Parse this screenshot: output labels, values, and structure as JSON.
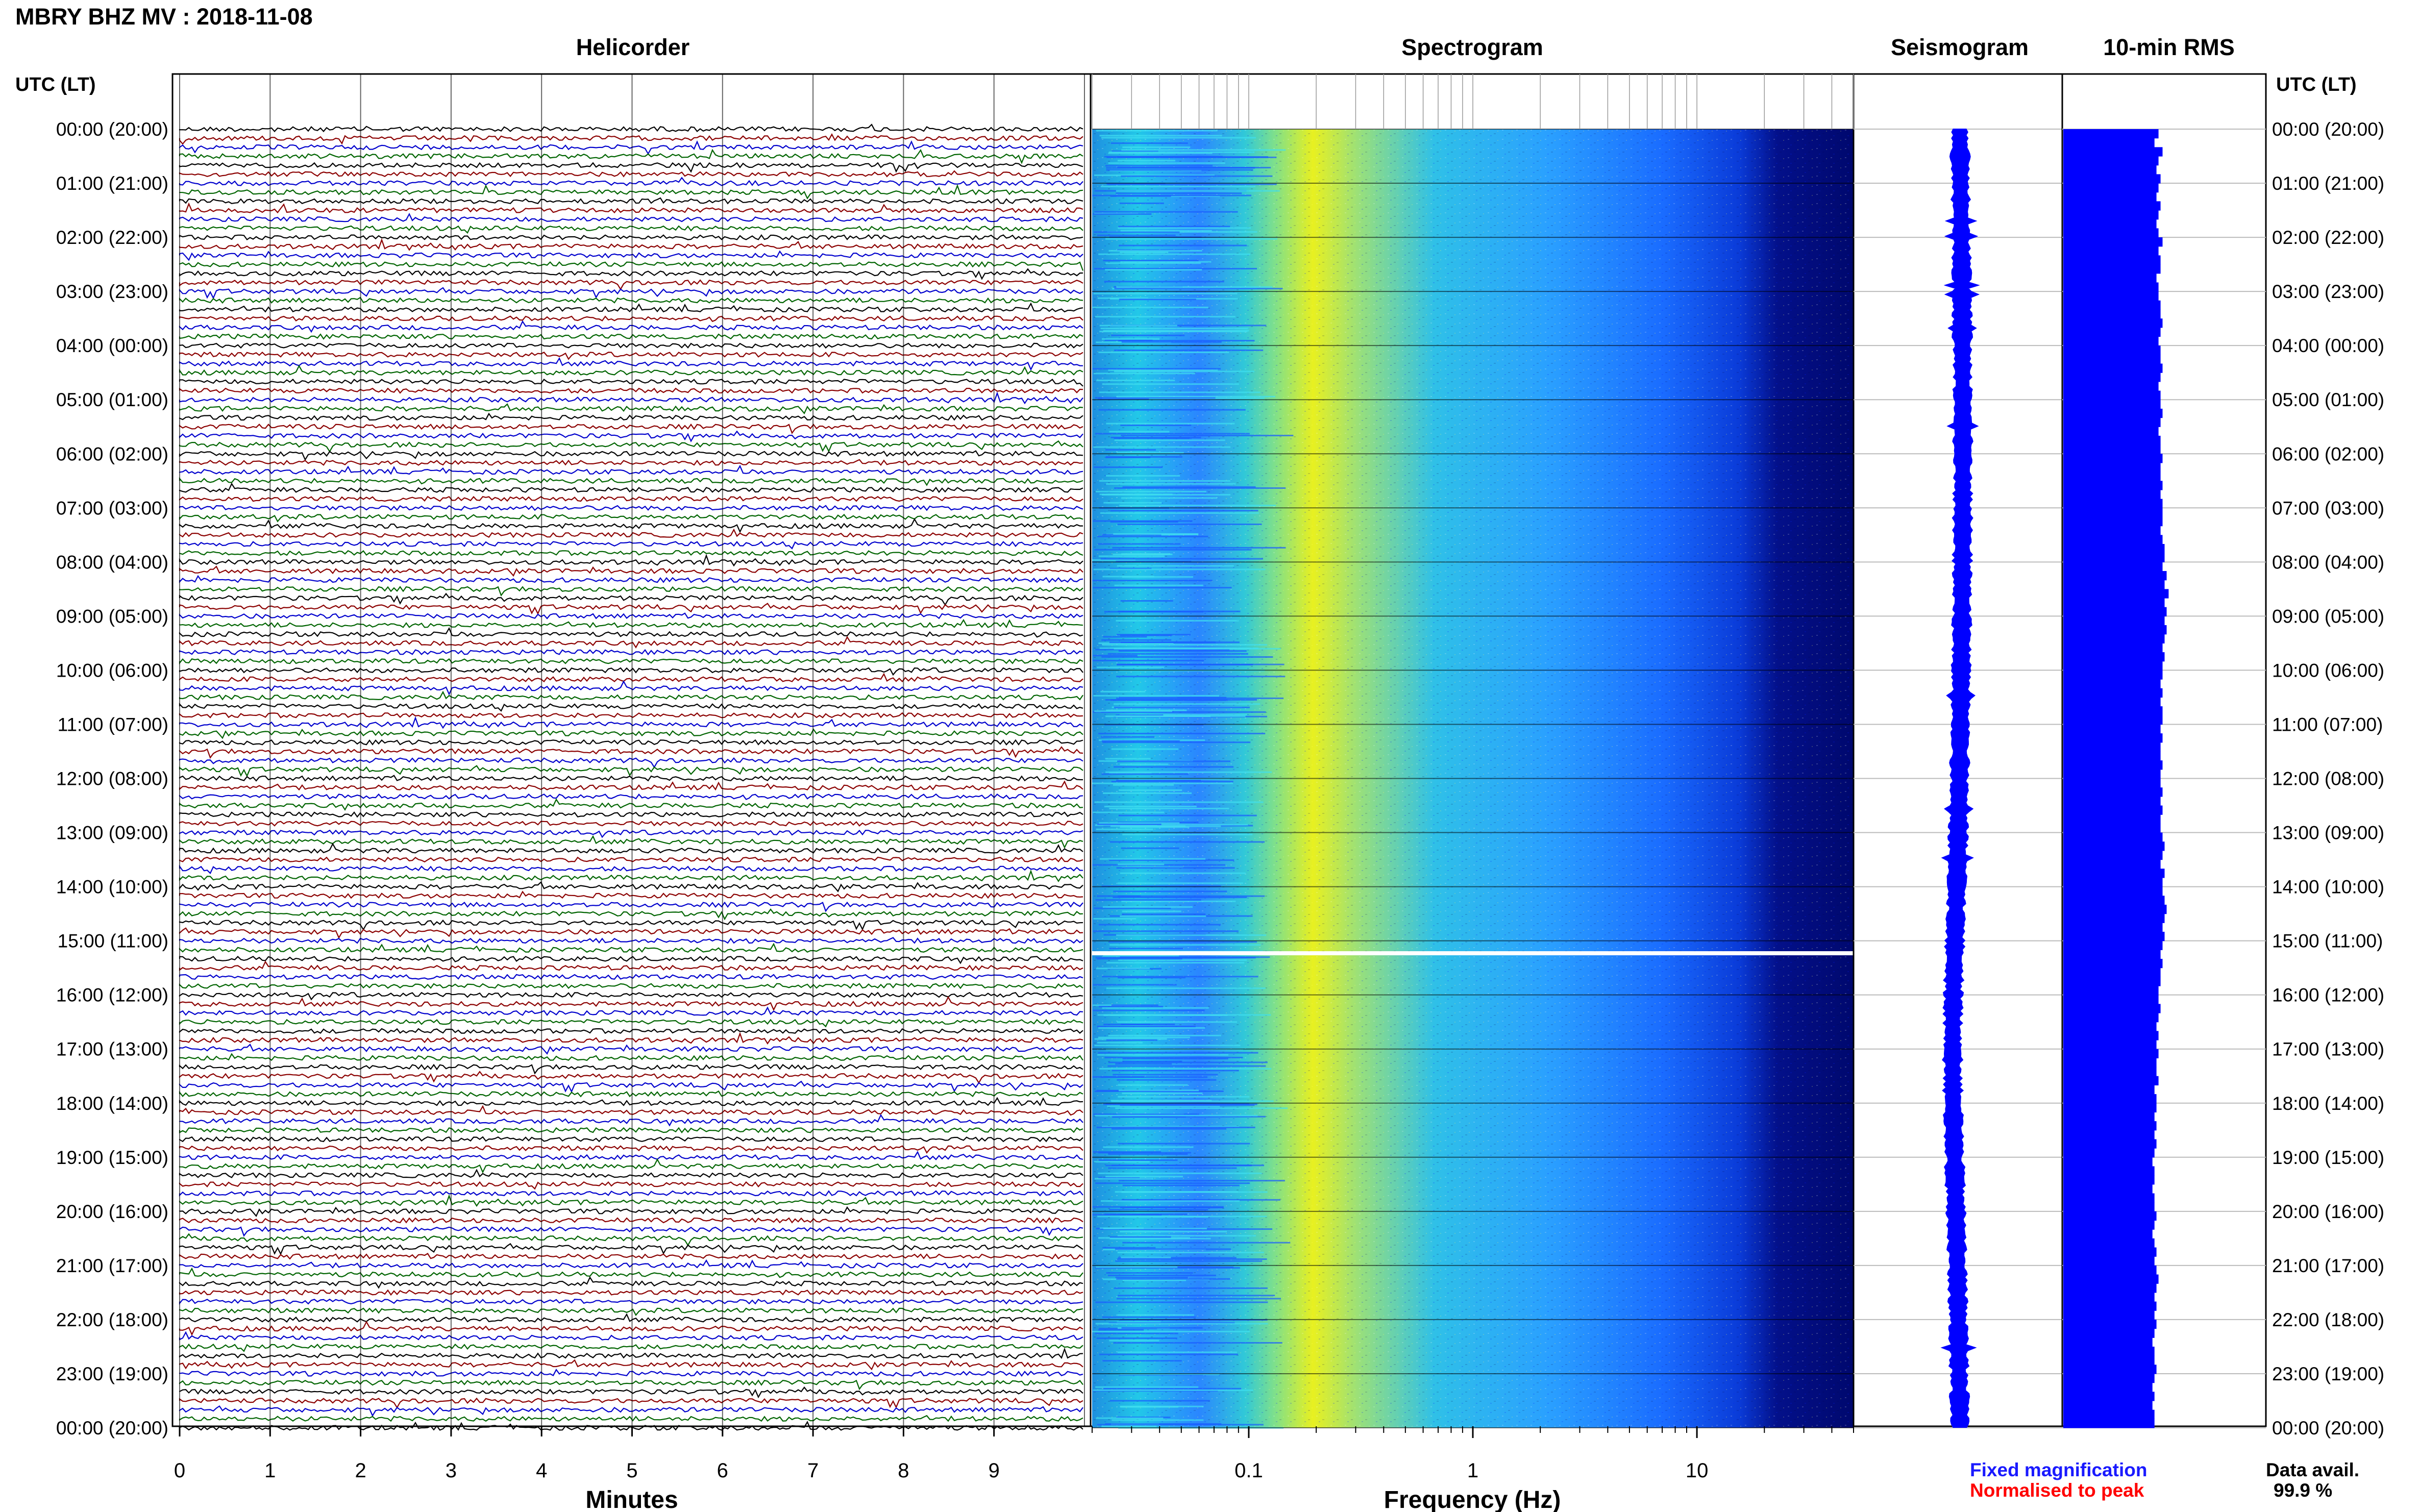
{
  "title": "MBRY BHZ MV : 2018-11-08",
  "panels": {
    "helicorder": "Helicorder",
    "spectrogram": "Spectrogram",
    "seismogram": "Seismogram",
    "rms": "10-min RMS"
  },
  "axis_header_left": "UTC (LT)",
  "axis_header_right": "UTC (LT)",
  "time_labels": [
    "00:00 (20:00)",
    "01:00 (21:00)",
    "02:00 (22:00)",
    "03:00 (23:00)",
    "04:00 (00:00)",
    "05:00 (01:00)",
    "06:00 (02:00)",
    "07:00 (03:00)",
    "08:00 (04:00)",
    "09:00 (05:00)",
    "10:00 (06:00)",
    "11:00 (07:00)",
    "12:00 (08:00)",
    "13:00 (09:00)",
    "14:00 (10:00)",
    "15:00 (11:00)",
    "16:00 (12:00)",
    "17:00 (13:00)",
    "18:00 (14:00)",
    "19:00 (15:00)",
    "20:00 (16:00)",
    "21:00 (17:00)",
    "22:00 (18:00)",
    "23:00 (19:00)",
    "00:00 (20:00)"
  ],
  "helicorder_xlabel": "Minutes",
  "helicorder_ticks": [
    "0",
    "1",
    "2",
    "3",
    "4",
    "5",
    "6",
    "7",
    "8",
    "9"
  ],
  "spectrogram_xlabel": "Frequency (Hz)",
  "spectrogram_ticks": [
    "0.1",
    "1",
    "10"
  ],
  "legend": {
    "fixed": "Fixed magnification",
    "normalised": "Normalised to peak",
    "fixed_color": "#1a1aff",
    "normalised_color": "#ff0000"
  },
  "data_avail_label": "Data avail.",
  "data_avail_value": "99.9 %",
  "colors": {
    "trace_cycle": [
      "#000000",
      "#8b0000",
      "#0000cd",
      "#006400"
    ],
    "spectrogram_low": "#00008b",
    "spectrogram_high": "#ffff00",
    "rms_fill": "#0000ff",
    "seismogram_fill": "#0000ff"
  },
  "chart_data": [
    {
      "type": "line",
      "panel": "helicorder",
      "description_note": "10-minute seismograph traces, 6 per hour, 24 hours",
      "xlim": [
        0,
        10
      ],
      "ylim_hours": [
        0,
        24
      ],
      "traces_per_hour": 6,
      "gap_near_hour": 15.15
    },
    {
      "type": "heatmap",
      "panel": "spectrogram",
      "xscale": "log",
      "xlim": [
        0.02,
        50
      ],
      "peak_frequency_hz": 0.25,
      "gap_near_hour": 15.15
    },
    {
      "type": "area",
      "panel": "seismogram",
      "ylim_hours": [
        0,
        24
      ]
    },
    {
      "type": "bar",
      "panel": "10-min RMS",
      "orientation": "horizontal",
      "ylim_hours": [
        0,
        24
      ],
      "relative_values": [
        0.47,
        0.45,
        0.49,
        0.47,
        0.46,
        0.48,
        0.47,
        0.46,
        0.48,
        0.47,
        0.46,
        0.47,
        0.49,
        0.47,
        0.48,
        0.48,
        0.46,
        0.47,
        0.47,
        0.48,
        0.48,
        0.49,
        0.48,
        0.47,
        0.48,
        0.48,
        0.49,
        0.48,
        0.47,
        0.48,
        0.48,
        0.49,
        0.48,
        0.47,
        0.48,
        0.48,
        0.49,
        0.48,
        0.48,
        0.49,
        0.48,
        0.49,
        0.49,
        0.49,
        0.48,
        0.49,
        0.5,
        0.5,
        0.49,
        0.51,
        0.5,
        0.52,
        0.5,
        0.51,
        0.5,
        0.51,
        0.5,
        0.49,
        0.5,
        0.49,
        0.49,
        0.48,
        0.49,
        0.48,
        0.49,
        0.49,
        0.48,
        0.49,
        0.48,
        0.48,
        0.49,
        0.48,
        0.48,
        0.49,
        0.48,
        0.49,
        0.48,
        0.48,
        0.49,
        0.5,
        0.49,
        0.48,
        0.5,
        0.49,
        0.49,
        0.5,
        0.51,
        0.5,
        0.49,
        0.5,
        0.49,
        0.48,
        0.49,
        0.48,
        0.48,
        0.47,
        0.47,
        0.48,
        0.47,
        0.46,
        0.47,
        0.46,
        0.47,
        0.46,
        0.46,
        0.47,
        0.45,
        0.46,
        0.46,
        0.45,
        0.46,
        0.45,
        0.46,
        0.45,
        0.44,
        0.45,
        0.45,
        0.44,
        0.45,
        0.45,
        0.46,
        0.45,
        0.44,
        0.45,
        0.46,
        0.45,
        0.46,
        0.47,
        0.46,
        0.45,
        0.46,
        0.45,
        0.46,
        0.45,
        0.44,
        0.45,
        0.45,
        0.46,
        0.45,
        0.44,
        0.45,
        0.44,
        0.45,
        0.45
      ]
    }
  ]
}
